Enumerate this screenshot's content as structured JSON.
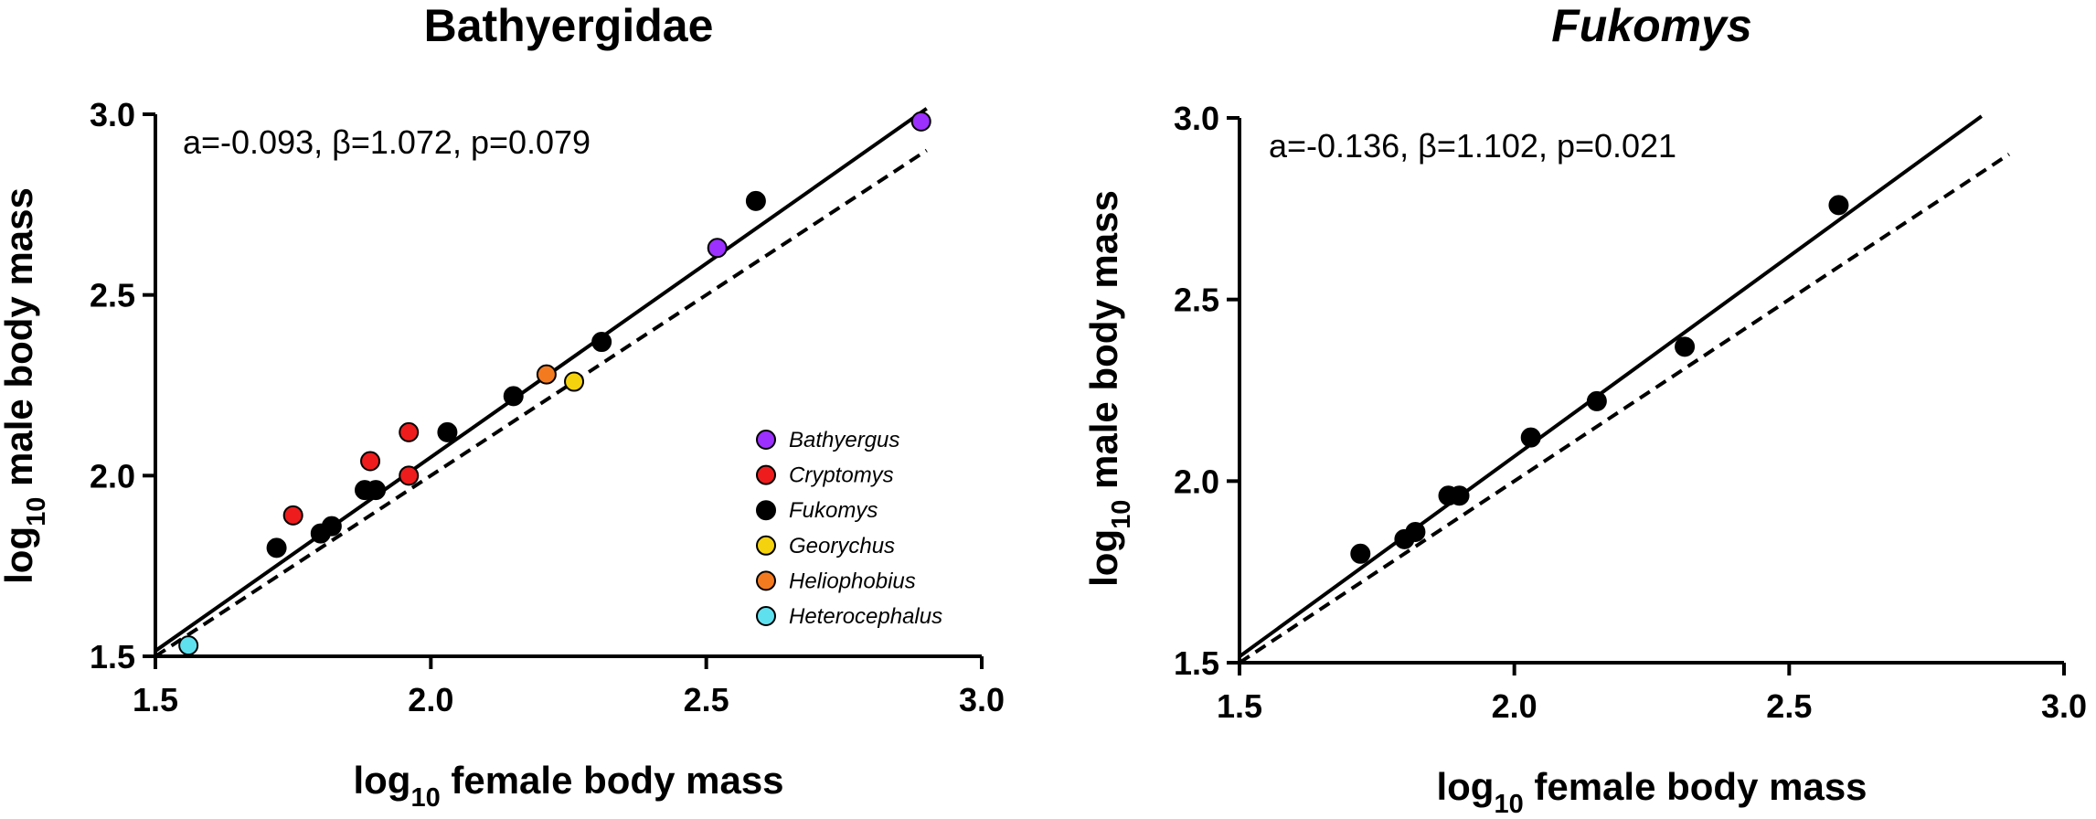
{
  "chart_data": [
    {
      "type": "scatter",
      "title": "Bathyergidae",
      "title_italic": false,
      "xlabel": {
        "prefix": "log",
        "sub": "10",
        "rest": " female body mass"
      },
      "ylabel": {
        "prefix": "log",
        "sub": "10",
        "rest": " male body mass"
      },
      "xlim": [
        1.5,
        3.0
      ],
      "ylim": [
        1.5,
        3.0
      ],
      "xticks": [
        "1.5",
        "2.0",
        "2.5",
        "3.0"
      ],
      "yticks": [
        "1.5",
        "2.0",
        "2.5",
        "3.0"
      ],
      "annotation": "a=-0.093, β=1.072, p=0.079",
      "fit": {
        "intercept": -0.093,
        "slope": 1.072,
        "x_range": [
          1.5,
          2.9
        ]
      },
      "identity_line": {
        "x_range": [
          1.5,
          2.9
        ]
      },
      "legend_position": "right-middle",
      "series": [
        {
          "name": "Bathyergus",
          "color": "#9b30ff",
          "points": [
            [
              2.52,
              2.63
            ],
            [
              2.89,
              2.98
            ]
          ]
        },
        {
          "name": "Cryptomys",
          "color": "#ee1c1c",
          "points": [
            [
              1.75,
              1.89
            ],
            [
              1.89,
              2.04
            ],
            [
              1.96,
              2.0
            ],
            [
              1.96,
              2.12
            ]
          ]
        },
        {
          "name": "Fukomys",
          "color": "#000000",
          "points": [
            [
              1.72,
              1.8
            ],
            [
              1.8,
              1.84
            ],
            [
              1.82,
              1.86
            ],
            [
              1.88,
              1.96
            ],
            [
              1.9,
              1.96
            ],
            [
              2.03,
              2.12
            ],
            [
              2.15,
              2.22
            ],
            [
              2.31,
              2.37
            ],
            [
              2.59,
              2.76
            ]
          ]
        },
        {
          "name": "Georychus",
          "color": "#f4d20e",
          "points": [
            [
              2.26,
              2.26
            ]
          ]
        },
        {
          "name": "Heliophobius",
          "color": "#f47a1f",
          "points": [
            [
              2.21,
              2.28
            ]
          ]
        },
        {
          "name": "Heterocephalus",
          "color": "#5fe0ef",
          "points": [
            [
              1.56,
              1.53
            ]
          ]
        }
      ]
    },
    {
      "type": "scatter",
      "title": "Fukomys",
      "title_italic": true,
      "xlabel": {
        "prefix": "log",
        "sub": "10",
        "rest": " female body mass"
      },
      "ylabel": {
        "prefix": "log",
        "sub": "10",
        "rest": " male body mass"
      },
      "xlim": [
        1.5,
        3.0
      ],
      "ylim": [
        1.5,
        3.0
      ],
      "xticks": [
        "1.5",
        "2.0",
        "2.5",
        "3.0"
      ],
      "yticks": [
        "1.5",
        "2.0",
        "2.5",
        "3.0"
      ],
      "annotation": "a=-0.136, β=1.102, p=0.021",
      "fit": {
        "intercept": -0.136,
        "slope": 1.102,
        "x_range": [
          1.5,
          2.85
        ]
      },
      "identity_line": {
        "x_range": [
          1.5,
          2.9
        ]
      },
      "series": [
        {
          "name": "Fukomys",
          "color": "#000000",
          "points": [
            [
              1.72,
              1.8
            ],
            [
              1.8,
              1.84
            ],
            [
              1.82,
              1.86
            ],
            [
              1.88,
              1.96
            ],
            [
              1.9,
              1.96
            ],
            [
              2.03,
              2.12
            ],
            [
              2.15,
              2.22
            ],
            [
              2.31,
              2.37
            ],
            [
              2.59,
              2.76
            ]
          ]
        }
      ]
    }
  ]
}
